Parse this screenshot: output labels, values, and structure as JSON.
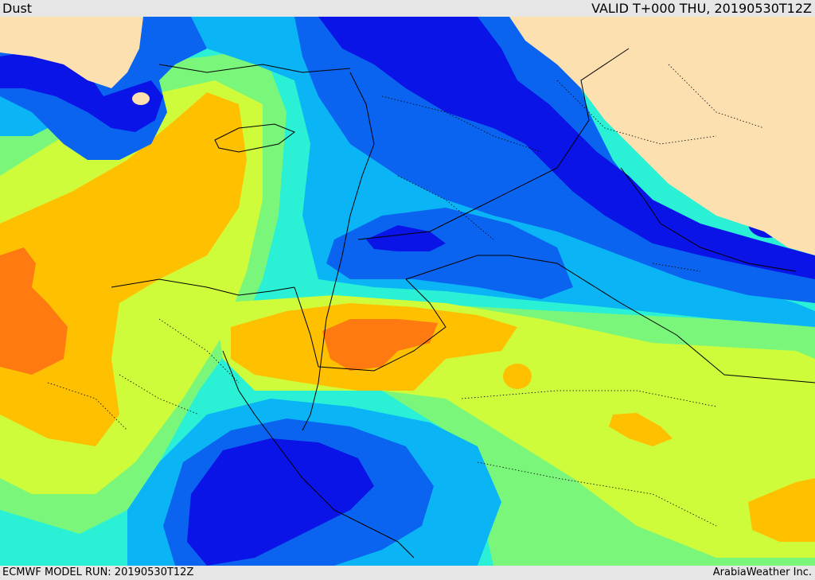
{
  "header": {
    "title": "Dust",
    "valid": "VALID T+000 THU, 20190530T12Z"
  },
  "footer": {
    "run": "ECMWF MODEL RUN: 20190530T12Z",
    "credit": "ArabiaWeather Inc."
  },
  "colors": {
    "land": "#fde0b0",
    "dark_blue": "#0a14e6",
    "blue": "#0a64f0",
    "light_blue": "#0ab4f5",
    "cyan": "#2af0d6",
    "green": "#7af77a",
    "yellow_green": "#cefc3a",
    "orange": "#ffc000",
    "dark_orange": "#ff7a10"
  }
}
